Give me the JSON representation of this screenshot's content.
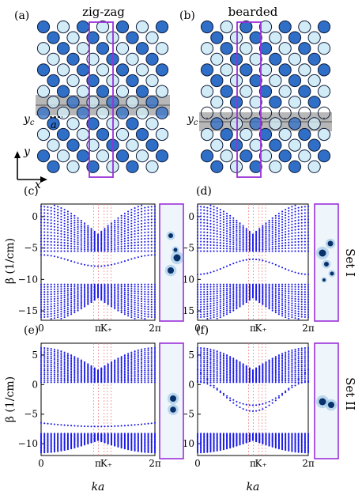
{
  "figure": {
    "panel_labels": [
      "(a)",
      "(b)",
      "(c)",
      "(d)",
      "(e)",
      "(f)"
    ],
    "lattice_titles": [
      "zig-zag",
      "bearded"
    ],
    "lattice_annotations": {
      "yc": "y",
      "yc_sub": "c",
      "a": "a",
      "y_axis": "y",
      "x_axis": "x"
    },
    "set_labels": [
      "Set I",
      "Set II"
    ],
    "ylabel": "β (1/cm)",
    "xlabel": "ka",
    "colors": {
      "dark_site": "#2f6fc7",
      "light_site": "#d2ecf7",
      "bands": "#1a1ae6",
      "box": "#9b30d9",
      "kline": "#ee7a7a"
    }
  },
  "chart_data": [
    {
      "id": "c",
      "type": "scatter",
      "set": "Set I",
      "lattice": "zig-zag",
      "xlabel": "ka",
      "ylabel": "β (1/cm)",
      "x_ticks": [
        "0",
        "π",
        "K₊",
        "2π"
      ],
      "x_range": [
        "0",
        "2π"
      ],
      "y_ticks": [
        0,
        -5,
        -10,
        -15
      ],
      "ylim": [
        -16.5,
        2
      ]
    },
    {
      "id": "d",
      "type": "scatter",
      "set": "Set I",
      "lattice": "bearded",
      "xlabel": "ka",
      "ylabel": "β (1/cm)",
      "x_ticks": [
        "0",
        "π",
        "K₊",
        "2π"
      ],
      "x_range": [
        "0",
        "2π"
      ],
      "y_ticks": [
        0,
        -5,
        -10,
        -15
      ],
      "ylim": [
        -16.5,
        2
      ]
    },
    {
      "id": "e",
      "type": "scatter",
      "set": "Set II",
      "lattice": "zig-zag",
      "xlabel": "ka",
      "ylabel": "β (1/cm)",
      "x_ticks": [
        "0",
        "π",
        "K₊",
        "2π"
      ],
      "x_range": [
        "0",
        "2π"
      ],
      "y_ticks": [
        5,
        0,
        -5,
        -10
      ],
      "ylim": [
        -12,
        7
      ]
    },
    {
      "id": "f",
      "type": "scatter",
      "set": "Set II",
      "lattice": "bearded",
      "xlabel": "ka",
      "ylabel": "β (1/cm)",
      "x_ticks": [
        "0",
        "π",
        "K₊",
        "2π"
      ],
      "x_range": [
        "0",
        "2π"
      ],
      "y_ticks": [
        5,
        0,
        -5,
        -10
      ],
      "ylim": [
        -12,
        7
      ]
    }
  ]
}
